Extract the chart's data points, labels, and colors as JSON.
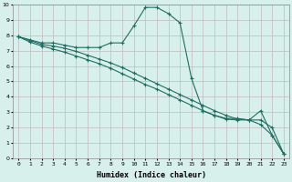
{
  "xlabel": "Humidex (Indice chaleur)",
  "ylabel": "",
  "xlim": [
    -0.5,
    23.5
  ],
  "ylim": [
    0,
    10
  ],
  "xtick_labels": [
    "0",
    "1",
    "2",
    "3",
    "4",
    "5",
    "6",
    "7",
    "8",
    "9",
    "10",
    "11",
    "12",
    "13",
    "14",
    "15",
    "16",
    "17",
    "18",
    "19",
    "20",
    "21",
    "22",
    "23"
  ],
  "ytick_labels": [
    "0",
    "1",
    "2",
    "3",
    "4",
    "5",
    "6",
    "7",
    "8",
    "9",
    "10"
  ],
  "bg_color": "#d8f0ec",
  "plot_bg_color": "#d8f0ec",
  "grid_color": "#c0b8c0",
  "line_color": "#1e6e62",
  "line1_x": [
    0,
    1,
    2,
    3,
    4,
    5,
    6,
    7,
    8,
    9,
    10,
    11,
    12,
    13,
    14,
    15,
    16,
    17,
    18,
    19,
    20,
    21,
    22,
    23
  ],
  "line1_y": [
    7.9,
    7.7,
    7.5,
    7.5,
    7.35,
    7.2,
    7.2,
    7.2,
    7.5,
    7.5,
    8.6,
    9.8,
    9.8,
    9.4,
    8.8,
    5.2,
    3.1,
    2.8,
    2.6,
    2.6,
    2.5,
    3.1,
    1.5,
    0.3
  ],
  "line2_x": [
    0,
    1,
    2,
    3,
    4,
    5,
    6,
    7,
    8,
    9,
    10,
    11,
    12,
    13,
    14,
    15,
    16,
    17,
    18,
    19,
    20,
    21,
    22,
    23
  ],
  "line2_y": [
    7.9,
    7.65,
    7.4,
    7.3,
    7.15,
    6.95,
    6.7,
    6.45,
    6.2,
    5.9,
    5.55,
    5.2,
    4.85,
    4.5,
    4.15,
    3.8,
    3.45,
    3.1,
    2.8,
    2.55,
    2.5,
    2.5,
    2.0,
    0.3
  ],
  "line3_x": [
    0,
    1,
    2,
    3,
    4,
    5,
    6,
    7,
    8,
    9,
    10,
    11,
    12,
    13,
    14,
    15,
    16,
    17,
    18,
    19,
    20,
    21,
    22,
    23
  ],
  "line3_y": [
    7.9,
    7.55,
    7.3,
    7.1,
    6.9,
    6.65,
    6.4,
    6.15,
    5.85,
    5.5,
    5.15,
    4.8,
    4.5,
    4.15,
    3.8,
    3.45,
    3.1,
    2.8,
    2.55,
    2.5,
    2.5,
    2.2,
    1.5,
    0.3
  ]
}
